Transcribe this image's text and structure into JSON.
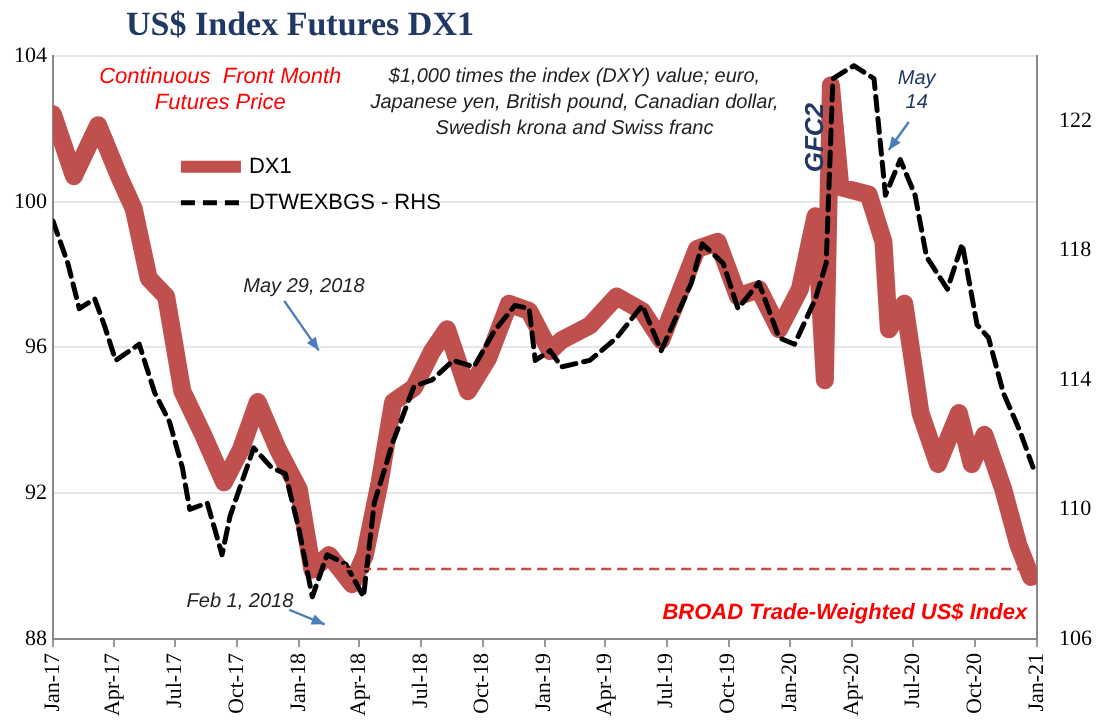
{
  "chart_data": {
    "type": "line",
    "title": "US$ Index Futures DX1",
    "xlim": [
      "2017-01-01",
      "2021-01-01"
    ],
    "xticks": [
      {
        "value": "2017-01-01",
        "label": "Jan-17"
      },
      {
        "value": "2017-04-01",
        "label": "Apr-17"
      },
      {
        "value": "2017-07-01",
        "label": "Jul-17"
      },
      {
        "value": "2017-10-01",
        "label": "Oct-17"
      },
      {
        "value": "2018-01-01",
        "label": "Jan-18"
      },
      {
        "value": "2018-04-01",
        "label": "Apr-18"
      },
      {
        "value": "2018-07-01",
        "label": "Jul-18"
      },
      {
        "value": "2018-10-01",
        "label": "Oct-18"
      },
      {
        "value": "2019-01-01",
        "label": "Jan-19"
      },
      {
        "value": "2019-04-01",
        "label": "Apr-19"
      },
      {
        "value": "2019-07-01",
        "label": "Jul-19"
      },
      {
        "value": "2019-10-01",
        "label": "Oct-19"
      },
      {
        "value": "2020-01-01",
        "label": "Jan-20"
      },
      {
        "value": "2020-04-01",
        "label": "Apr-20"
      },
      {
        "value": "2020-07-01",
        "label": "Jul-20"
      },
      {
        "value": "2020-10-01",
        "label": "Oct-20"
      },
      {
        "value": "2021-01-01",
        "label": "Jan-21"
      }
    ],
    "ylim": [
      88,
      104
    ],
    "yticks": [
      88,
      92,
      96,
      100,
      104
    ],
    "y2lim": [
      106,
      124
    ],
    "y2ticks": [
      106,
      110,
      114,
      118,
      122
    ],
    "grid": "y",
    "legend": "top left",
    "marker": "none",
    "series": [
      {
        "name": "DX1",
        "color": "#c0504d",
        "line_style": "solid",
        "x": [
          "2017-01-01",
          "2017-02-01",
          "2017-03-09",
          "2017-04-09",
          "2017-05-01",
          "2017-05-23",
          "2017-06-18",
          "2017-07-12",
          "2017-08-12",
          "2017-09-12",
          "2017-10-07",
          "2017-11-01",
          "2017-12-01",
          "2018-01-01",
          "2018-01-21",
          "2018-02-15",
          "2018-03-21",
          "2018-04-09",
          "2018-05-01",
          "2018-05-21",
          "2018-06-21",
          "2018-07-18",
          "2018-08-09",
          "2018-09-09",
          "2018-10-09",
          "2018-11-09",
          "2018-12-09",
          "2019-01-09",
          "2019-01-26",
          "2019-03-09",
          "2019-04-18",
          "2019-05-26",
          "2019-06-23",
          "2019-08-15",
          "2019-09-15",
          "2019-10-15",
          "2019-11-15",
          "2019-12-15",
          "2020-01-15",
          "2020-02-07",
          "2020-02-21",
          "2020-03-01",
          "2020-03-15",
          "2020-04-26",
          "2020-05-18",
          "2020-05-26",
          "2020-06-18",
          "2020-07-12",
          "2020-08-07",
          "2020-09-07",
          "2020-09-26",
          "2020-10-15",
          "2020-11-12",
          "2020-12-04",
          "2020-12-23"
        ],
        "values": [
          102.4,
          100.7,
          102.1,
          100.7,
          99.8,
          97.9,
          97.4,
          94.8,
          93.6,
          92.3,
          93.2,
          94.5,
          93.2,
          92.1,
          89.9,
          90.3,
          89.5,
          90.3,
          92.3,
          94.5,
          94.9,
          95.9,
          96.5,
          94.8,
          95.7,
          97.2,
          97.0,
          95.9,
          96.2,
          96.6,
          97.4,
          97.0,
          96.2,
          98.7,
          98.9,
          97.4,
          97.6,
          96.5,
          97.6,
          99.6,
          95.1,
          103.2,
          100.4,
          100.2,
          98.9,
          96.5,
          97.2,
          94.2,
          92.8,
          94.2,
          92.8,
          93.6,
          92.1,
          90.6,
          89.7
        ]
      },
      {
        "name": "DTWEXBGS - RHS",
        "color": "#000000",
        "line_style": "dashed",
        "axis": "y2",
        "x": [
          "2017-01-01",
          "2017-01-23",
          "2017-02-09",
          "2017-03-04",
          "2017-03-18",
          "2017-04-04",
          "2017-05-09",
          "2017-06-01",
          "2017-06-23",
          "2017-07-12",
          "2017-07-23",
          "2017-08-18",
          "2017-09-09",
          "2017-09-21",
          "2017-10-26",
          "2017-11-21",
          "2017-12-12",
          "2018-01-01",
          "2018-01-21",
          "2018-02-12",
          "2018-03-12",
          "2018-04-07",
          "2018-04-23",
          "2018-05-21",
          "2018-06-21",
          "2018-07-18",
          "2018-08-18",
          "2018-09-18",
          "2018-10-18",
          "2018-11-18",
          "2018-12-09",
          "2018-12-18",
          "2019-01-09",
          "2019-01-26",
          "2019-03-09",
          "2019-04-18",
          "2019-05-26",
          "2019-06-23",
          "2019-08-07",
          "2019-08-23",
          "2019-09-23",
          "2019-10-15",
          "2019-11-15",
          "2019-12-15",
          "2020-01-07",
          "2020-02-07",
          "2020-02-23",
          "2020-03-04",
          "2020-04-04",
          "2020-05-04",
          "2020-05-21",
          "2020-06-12",
          "2020-07-04",
          "2020-07-21",
          "2020-08-21",
          "2020-09-12",
          "2020-10-04",
          "2020-10-21",
          "2020-11-12",
          "2020-12-07",
          "2020-12-26"
        ],
        "values": [
          118.9,
          117.6,
          116.2,
          116.5,
          115.7,
          114.6,
          115.1,
          113.6,
          112.7,
          111.3,
          110.0,
          110.2,
          108.6,
          109.8,
          111.9,
          111.3,
          111.1,
          109.4,
          107.3,
          108.6,
          108.3,
          107.3,
          110.2,
          112.1,
          113.8,
          114.0,
          114.6,
          114.4,
          115.5,
          116.3,
          116.2,
          114.6,
          114.9,
          114.4,
          114.6,
          115.3,
          116.3,
          114.9,
          117.0,
          118.2,
          117.6,
          116.2,
          117.0,
          115.3,
          115.1,
          116.5,
          117.6,
          123.3,
          123.7,
          123.3,
          119.7,
          120.8,
          119.7,
          117.8,
          116.8,
          118.2,
          115.7,
          115.3,
          113.6,
          112.4,
          111.3
        ]
      }
    ],
    "annotations": [
      "Continuous  Front Month Futures Price",
      "$1,000 times the index (DXY) value; euro, Japanese yen, British pound, Canadian dollar, Swedish krona and Swiss franc",
      "GFC2",
      "BROAD Trade-Weighted US$ Index",
      "May 29, 2018",
      "Feb 1, 2018",
      {
        "text": "May 14",
        "x": "2020-05-14",
        "y": 101.2
      }
    ]
  }
}
